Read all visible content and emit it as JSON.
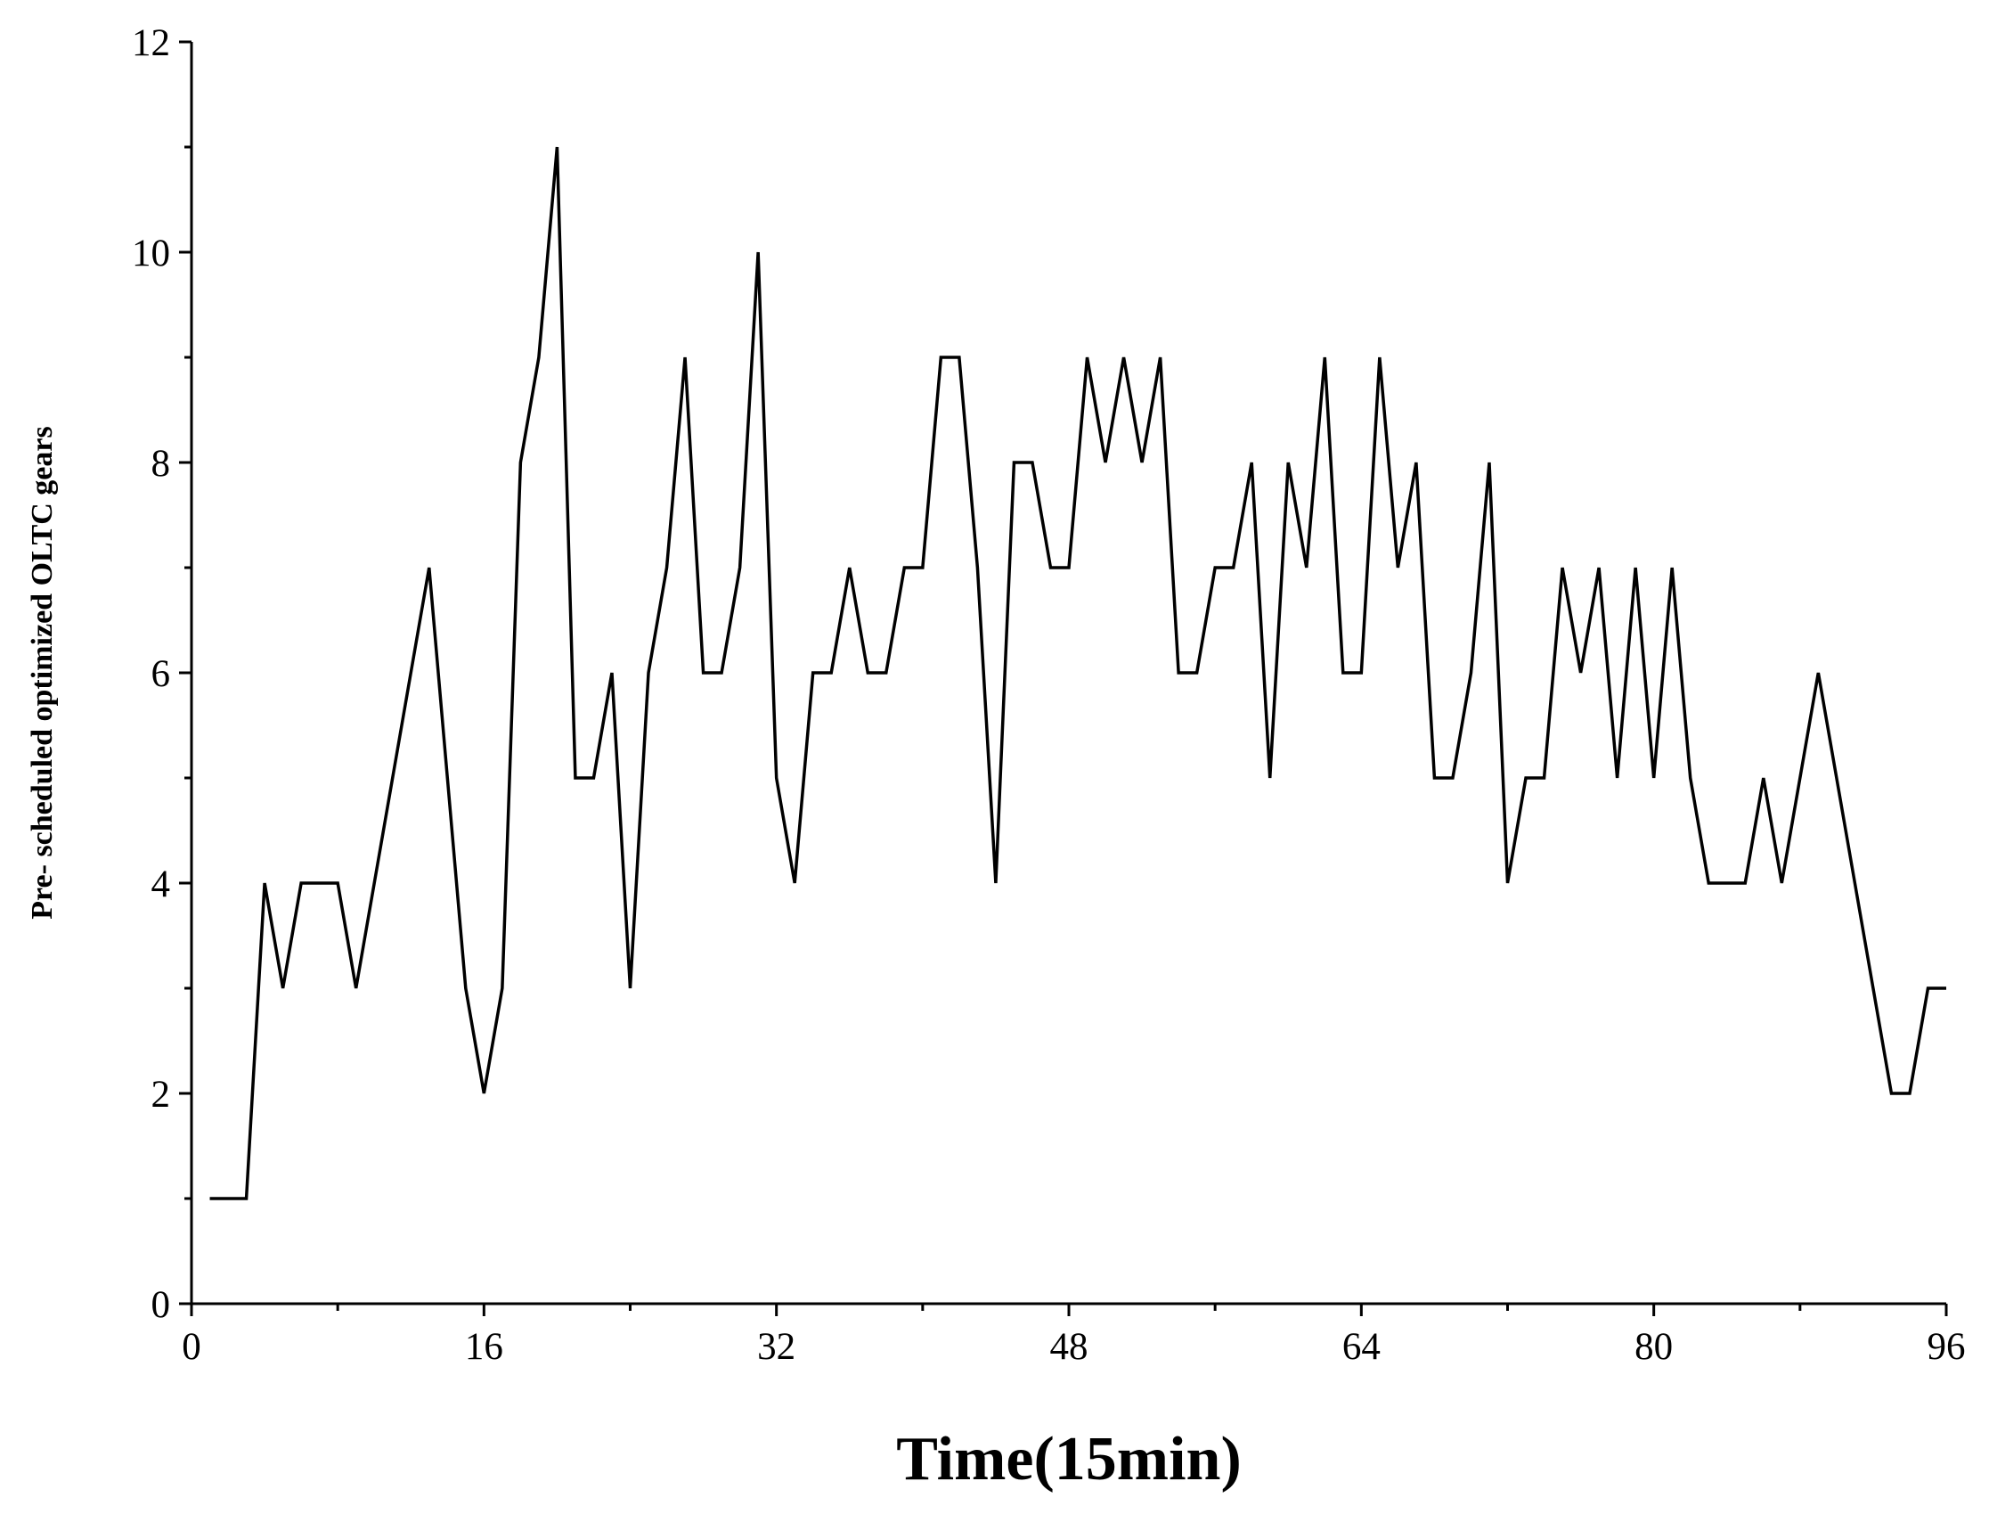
{
  "chart_data": {
    "type": "line",
    "xlabel": "Time(15min)",
    "ylabel": "Pre- scheduled optimized OLTC gears",
    "x": [
      1,
      2,
      3,
      4,
      5,
      6,
      7,
      8,
      9,
      10,
      11,
      12,
      13,
      14,
      15,
      16,
      17,
      18,
      19,
      20,
      21,
      22,
      23,
      24,
      25,
      26,
      27,
      28,
      29,
      30,
      31,
      32,
      33,
      34,
      35,
      36,
      37,
      38,
      39,
      40,
      41,
      42,
      43,
      44,
      45,
      46,
      47,
      48,
      49,
      50,
      51,
      52,
      53,
      54,
      55,
      56,
      57,
      58,
      59,
      60,
      61,
      62,
      63,
      64,
      65,
      66,
      67,
      68,
      69,
      70,
      71,
      72,
      73,
      74,
      75,
      76,
      77,
      78,
      79,
      80,
      81,
      82,
      83,
      84,
      85,
      86,
      87,
      88,
      89,
      90,
      91,
      92,
      93,
      94,
      95,
      96
    ],
    "values": [
      1,
      1,
      1,
      4,
      3,
      4,
      4,
      4,
      3,
      4,
      5,
      6,
      7,
      5,
      3,
      2,
      3,
      8,
      9,
      11,
      5,
      5,
      6,
      3,
      6,
      7,
      9,
      6,
      6,
      7,
      10,
      5,
      4,
      6,
      6,
      7,
      6,
      6,
      7,
      7,
      9,
      9,
      7,
      4,
      8,
      8,
      7,
      7,
      9,
      8,
      9,
      8,
      9,
      6,
      6,
      7,
      7,
      8,
      5,
      8,
      7,
      9,
      6,
      6,
      9,
      7,
      8,
      5,
      5,
      6,
      8,
      4,
      5,
      5,
      7,
      6,
      7,
      5,
      7,
      5,
      7,
      5,
      4,
      4,
      4,
      5,
      4,
      5,
      6,
      5,
      4,
      3,
      2,
      2,
      3,
      3
    ],
    "color": "#000000",
    "xlim": [
      0,
      96
    ],
    "xticks": [
      0,
      16,
      32,
      48,
      64,
      80,
      96
    ],
    "ylim": [
      0,
      12
    ],
    "yticks": [
      0,
      2,
      4,
      6,
      8,
      10,
      12
    ],
    "grid": false
  }
}
